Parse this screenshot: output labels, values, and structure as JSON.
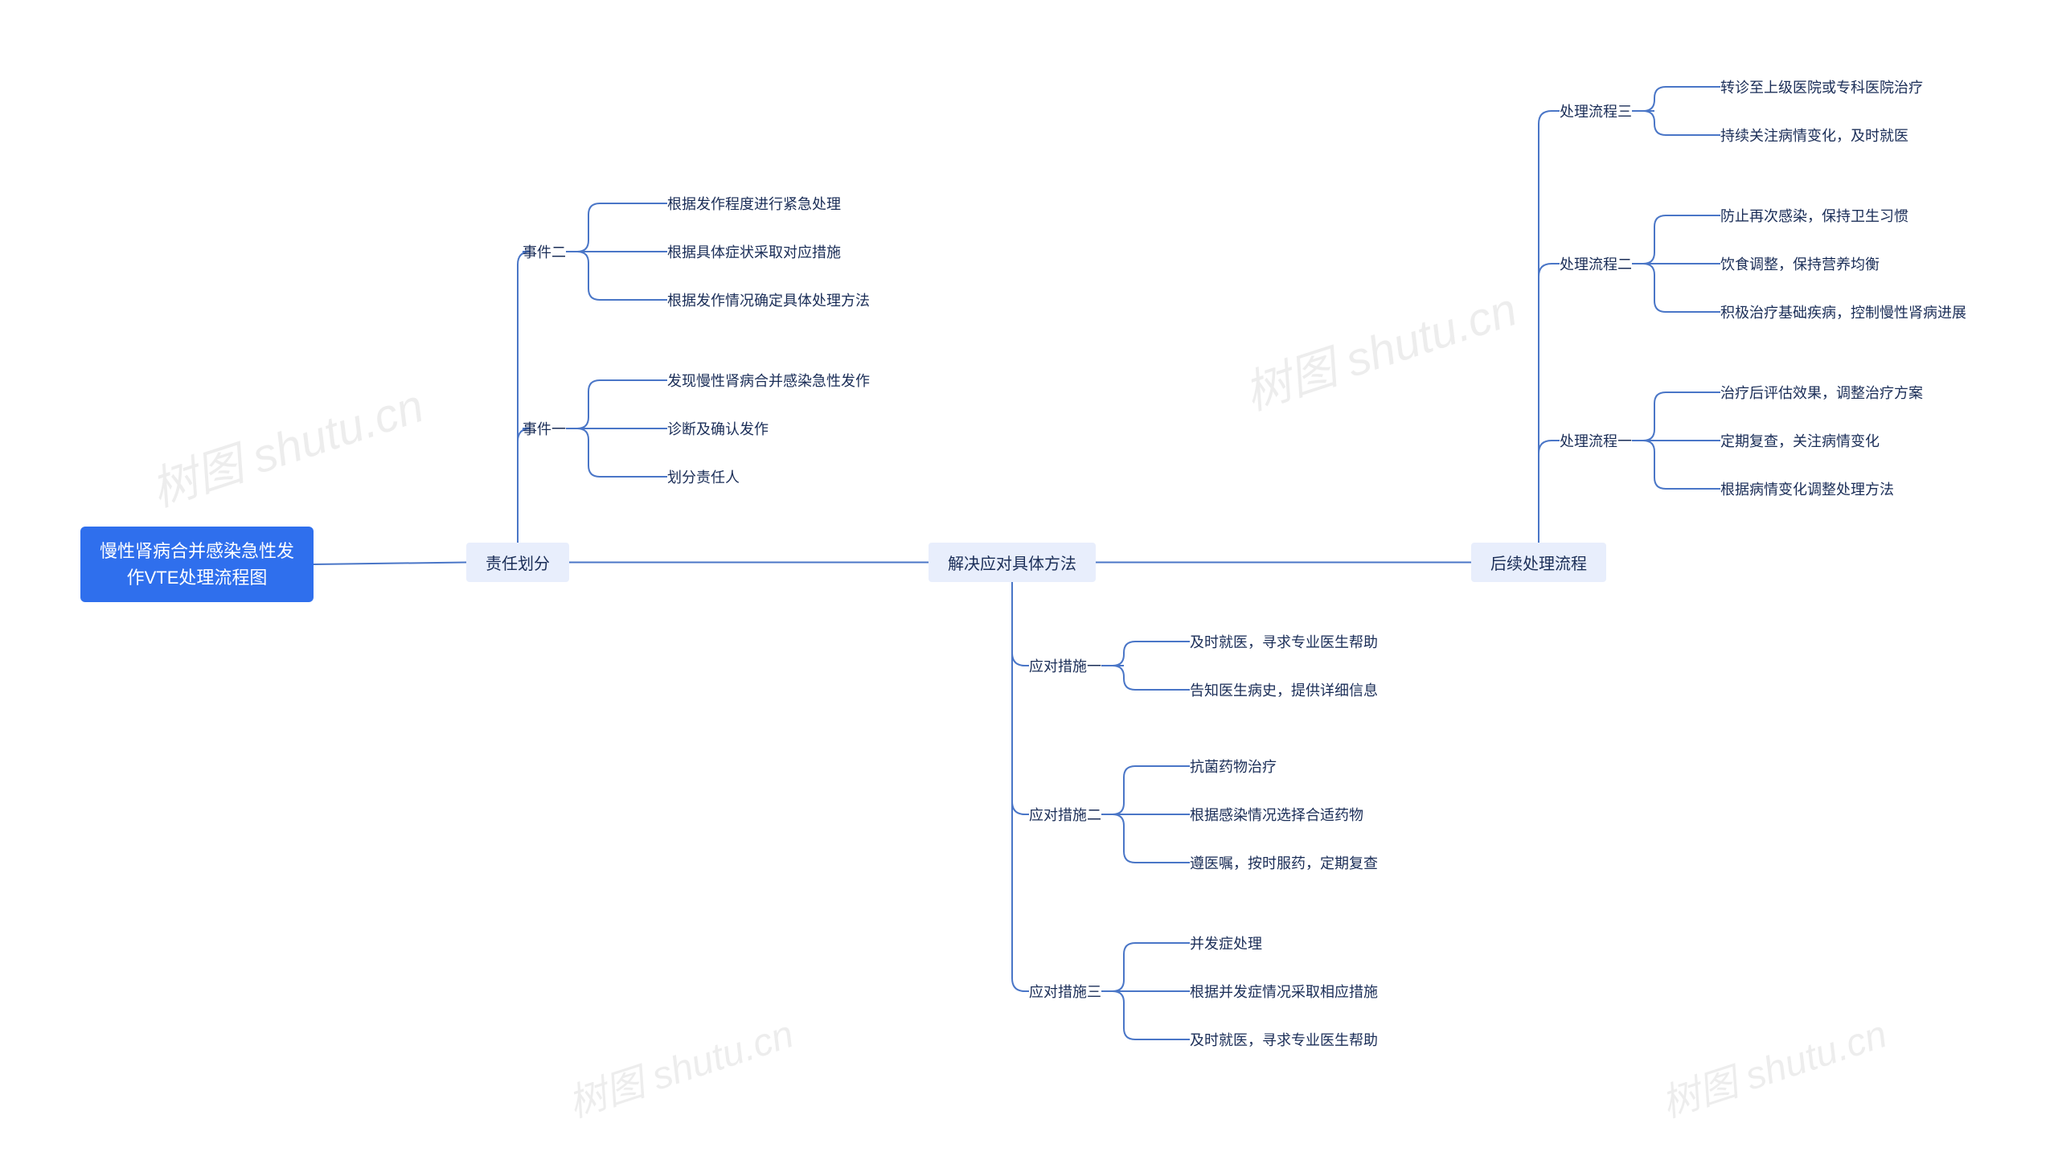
{
  "diagram": {
    "type": "mindmap-tree",
    "background_color": "#ffffff",
    "connector_color": "#4a76c7",
    "connector_width": 2,
    "root": {
      "text": "慢性肾病合并感染急性发作VTE处理流程图",
      "bg": "#2f6fed",
      "fg": "#ffffff",
      "fontsize": 22
    },
    "branches": [
      {
        "key": "b1",
        "label": "责任划分",
        "bg": "#e8eefc",
        "fg": "#1a2d57",
        "children": [
          {
            "key": "b1c1",
            "label": "事件二",
            "leaves": [
              "根据发作程度进行紧急处理",
              "根据具体症状采取对应措施",
              "根据发作情况确定具体处理方法"
            ]
          },
          {
            "key": "b1c2",
            "label": "事件一",
            "leaves": [
              "发现慢性肾病合并感染急性发作",
              "诊断及确认发作",
              "划分责任人"
            ]
          }
        ]
      },
      {
        "key": "b2",
        "label": "解决应对具体方法",
        "bg": "#e8eefc",
        "fg": "#1a2d57",
        "children": [
          {
            "key": "b2c1",
            "label": "应对措施一",
            "leaves": [
              "及时就医，寻求专业医生帮助",
              "告知医生病史，提供详细信息"
            ]
          },
          {
            "key": "b2c2",
            "label": "应对措施二",
            "leaves": [
              "抗菌药物治疗",
              "根据感染情况选择合适药物",
              "遵医嘱，按时服药，定期复查"
            ]
          },
          {
            "key": "b2c3",
            "label": "应对措施三",
            "leaves": [
              "并发症处理",
              "根据并发症情况采取相应措施",
              "及时就医，寻求专业医生帮助"
            ]
          }
        ]
      },
      {
        "key": "b3",
        "label": "后续处理流程",
        "bg": "#e8eefc",
        "fg": "#1a2d57",
        "children": [
          {
            "key": "b3c1",
            "label": "处理流程三",
            "leaves": [
              "转诊至上级医院或专科医院治疗",
              "持续关注病情变化，及时就医"
            ]
          },
          {
            "key": "b3c2",
            "label": "处理流程二",
            "leaves": [
              "防止再次感染，保持卫生习惯",
              "饮食调整，保持营养均衡",
              "积极治疗基础疾病，控制慢性肾病进展"
            ]
          },
          {
            "key": "b3c3",
            "label": "处理流程一",
            "leaves": [
              "治疗后评估效果，调整治疗方案",
              "定期复查，关注病情变化",
              "根据病情变化调整处理方法"
            ]
          }
        ]
      }
    ],
    "watermark_text": "树图 shutu.cn"
  }
}
